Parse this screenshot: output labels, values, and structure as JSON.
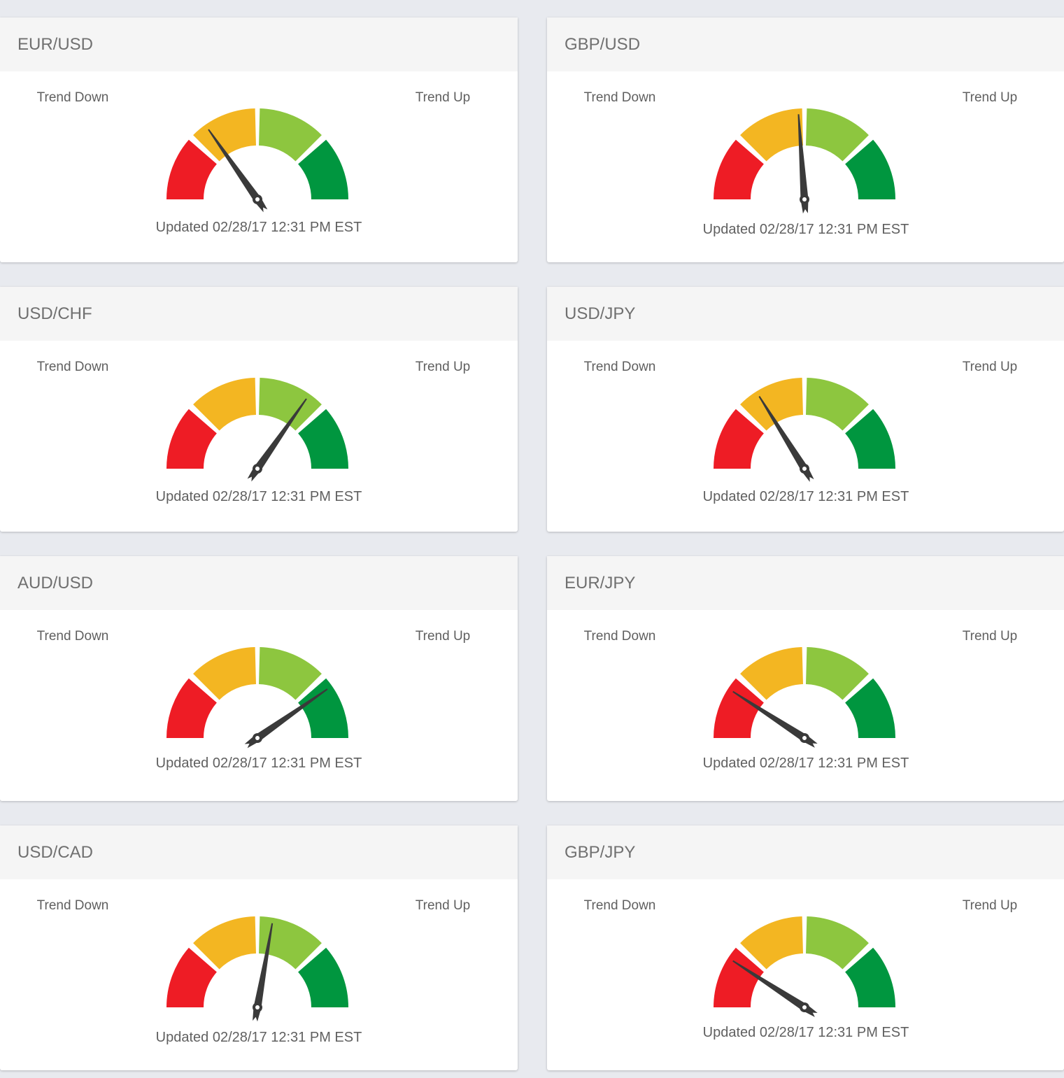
{
  "labels": {
    "down": "Trend Down",
    "up": "Trend Up"
  },
  "colors": {
    "red": "#ee1c25",
    "orange": "#f3b622",
    "lightgreen": "#8dc63f",
    "green": "#00963f",
    "needle": "#3a3a3a"
  },
  "cards": [
    {
      "pair": "EUR/USD",
      "updated": "Updated 02/28/17 12:31 PM EST",
      "needle_angle": -35
    },
    {
      "pair": "GBP/USD",
      "updated": "Updated 02/28/17 12:31 PM EST",
      "needle_angle": -4
    },
    {
      "pair": "USD/CHF",
      "updated": "Updated 02/28/17 12:31 PM EST",
      "needle_angle": 35
    },
    {
      "pair": "USD/JPY",
      "updated": "Updated 02/28/17 12:31 PM EST",
      "needle_angle": -32
    },
    {
      "pair": "AUD/USD",
      "updated": "Updated 02/28/17 12:31 PM EST",
      "needle_angle": 55
    },
    {
      "pair": "EUR/JPY",
      "updated": "Updated 02/28/17 12:31 PM EST",
      "needle_angle": -57
    },
    {
      "pair": "USD/CAD",
      "updated": "Updated 02/28/17 12:31 PM EST",
      "needle_angle": 10
    },
    {
      "pair": "GBP/JPY",
      "updated": "Updated 02/28/17 12:31 PM EST",
      "needle_angle": -57
    }
  ]
}
